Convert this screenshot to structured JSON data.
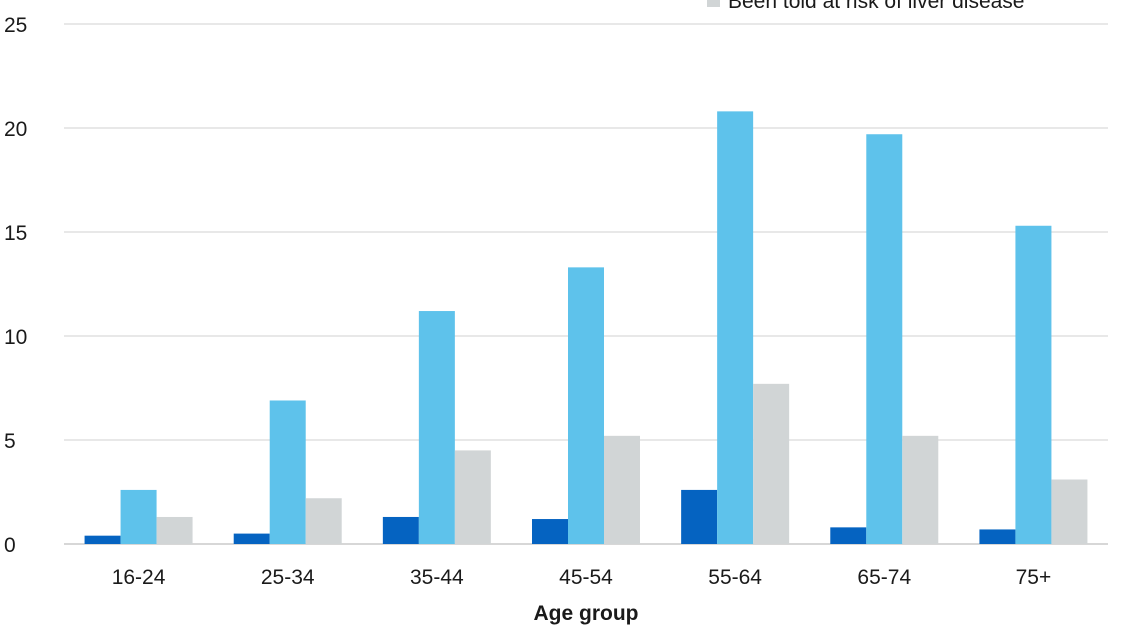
{
  "chart_data": {
    "type": "bar",
    "title": "",
    "xlabel": "Age group",
    "ylabel": "",
    "ylim": [
      0,
      25
    ],
    "yticks": [
      0,
      5,
      10,
      15,
      20,
      25
    ],
    "grid": true,
    "legend_position": "top-right",
    "categories": [
      "16-24",
      "25-34",
      "35-44",
      "45-54",
      "55-64",
      "65-74",
      "75+"
    ],
    "series": [
      {
        "name": "",
        "color": "#0563c1",
        "values": [
          0.4,
          0.5,
          1.3,
          1.2,
          2.6,
          0.8,
          0.7
        ]
      },
      {
        "name": "",
        "color": "#5ec2eb",
        "values": [
          2.6,
          6.9,
          11.2,
          13.3,
          20.8,
          19.7,
          15.3
        ]
      },
      {
        "name": "Been told at risk of liver disease",
        "color": "#d1d5d6",
        "values": [
          1.3,
          2.2,
          4.5,
          5.2,
          7.7,
          5.2,
          3.1
        ]
      }
    ]
  }
}
